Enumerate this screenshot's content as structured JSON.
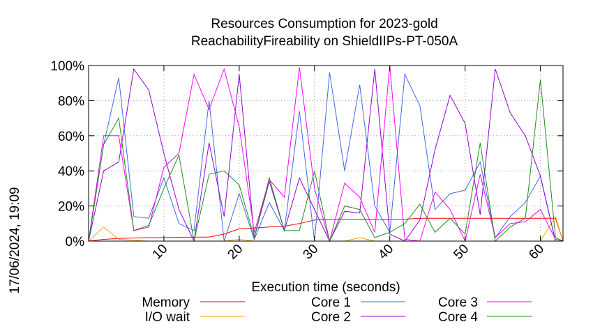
{
  "chart_data": {
    "type": "line",
    "title": "Resources Consumption for 2023-gold",
    "subtitle": "ReachabilityFireability on ShieldIIPs-PT-050A",
    "xlabel": "Execution time (seconds)",
    "ylabel": "",
    "side_label": "17/06/2024, 19:09",
    "xlim": [
      0,
      63
    ],
    "ylim": [
      0,
      100
    ],
    "x_ticks": [
      10,
      20,
      30,
      40,
      50,
      60
    ],
    "y_ticks": [
      0,
      20,
      40,
      60,
      80,
      100
    ],
    "y_tick_labels": [
      "0%",
      "20%",
      "40%",
      "60%",
      "80%",
      "100%"
    ],
    "grid": true,
    "legend_placement": "bottom",
    "series": [
      {
        "name": "Memory",
        "color": "#ff0000",
        "x": [
          0,
          2,
          4,
          6,
          8,
          10,
          12,
          14,
          16,
          18,
          20,
          22,
          24,
          26,
          28,
          30,
          32,
          34,
          36,
          38,
          40,
          42,
          44,
          46,
          48,
          50,
          52,
          54,
          56,
          58,
          60,
          62,
          63
        ],
        "y": [
          0,
          1,
          1.5,
          1.8,
          2,
          2,
          2.2,
          2.3,
          2.3,
          4,
          7,
          7.5,
          8,
          8.5,
          10,
          12,
          12.5,
          12.5,
          12.5,
          12.5,
          12.5,
          12.5,
          13,
          13,
          13,
          13,
          13,
          13,
          13,
          13,
          13,
          13,
          0
        ]
      },
      {
        "name": "I/O wait",
        "color": "#ffa500",
        "x": [
          0,
          2,
          4,
          6,
          8,
          10,
          12,
          14,
          16,
          18,
          20,
          22,
          24,
          26,
          28,
          30,
          32,
          34,
          36,
          38,
          40,
          42,
          44,
          46,
          48,
          50,
          52,
          54,
          56,
          58,
          60,
          62,
          63
        ],
        "y": [
          0,
          8,
          1,
          0.5,
          0,
          0,
          0,
          0,
          0,
          0,
          1,
          0,
          0,
          0,
          0,
          0,
          0,
          0,
          2,
          0,
          0,
          0,
          0,
          0,
          0,
          0,
          0,
          0,
          0,
          0,
          0,
          14,
          0
        ]
      },
      {
        "name": "Core 1",
        "color": "#4169e1",
        "x": [
          0,
          2,
          4,
          6,
          8,
          10,
          12,
          14,
          16,
          18,
          20,
          22,
          24,
          26,
          28,
          30,
          32,
          34,
          36,
          38,
          40,
          42,
          44,
          46,
          48,
          50,
          52,
          54,
          56,
          58,
          60,
          62,
          63
        ],
        "y": [
          0,
          55,
          93,
          14,
          13,
          36,
          10,
          6,
          80,
          0,
          27,
          1,
          22,
          6,
          74,
          0,
          96,
          40,
          89,
          20,
          5,
          95,
          77,
          18,
          27,
          29,
          45,
          2,
          14,
          22,
          37,
          0,
          0
        ]
      },
      {
        "name": "Core 2",
        "color": "#9400d3",
        "x": [
          0,
          2,
          4,
          6,
          8,
          10,
          12,
          14,
          16,
          18,
          20,
          22,
          24,
          26,
          28,
          30,
          32,
          34,
          36,
          38,
          40,
          42,
          44,
          46,
          48,
          50,
          52,
          54,
          56,
          58,
          60,
          62,
          63
        ],
        "y": [
          0,
          40,
          45,
          98,
          86,
          50,
          18,
          0,
          56,
          14,
          95,
          2,
          34,
          6,
          36,
          18,
          0,
          17,
          16,
          98,
          4,
          0,
          12,
          52,
          83,
          67,
          15,
          98,
          73,
          60,
          37,
          0,
          0
        ]
      },
      {
        "name": "Core 3",
        "color": "#ff00ff",
        "x": [
          0,
          2,
          4,
          6,
          8,
          10,
          12,
          14,
          16,
          18,
          20,
          22,
          24,
          26,
          28,
          30,
          32,
          34,
          36,
          38,
          40,
          42,
          44,
          46,
          48,
          50,
          52,
          54,
          56,
          58,
          60,
          62,
          63
        ],
        "y": [
          0,
          60,
          60,
          6,
          8,
          42,
          50,
          95,
          75,
          98,
          65,
          5,
          35,
          25,
          99,
          30,
          0,
          33,
          25,
          5,
          100,
          1,
          0,
          28,
          18,
          0,
          38,
          2,
          10,
          11,
          18,
          1,
          0
        ]
      },
      {
        "name": "Core 4",
        "color": "#228b22",
        "x": [
          0,
          2,
          4,
          6,
          8,
          10,
          12,
          14,
          16,
          18,
          20,
          22,
          24,
          26,
          28,
          30,
          32,
          34,
          36,
          38,
          40,
          42,
          44,
          46,
          48,
          50,
          52,
          54,
          56,
          58,
          60,
          62,
          63
        ],
        "y": [
          0,
          55,
          70,
          6,
          9,
          30,
          49,
          0,
          38,
          40,
          32,
          2,
          36,
          6,
          6,
          40,
          0,
          20,
          18,
          2,
          5,
          10,
          21,
          5,
          13,
          4,
          56,
          0,
          8,
          13,
          92,
          2,
          0
        ]
      }
    ]
  }
}
